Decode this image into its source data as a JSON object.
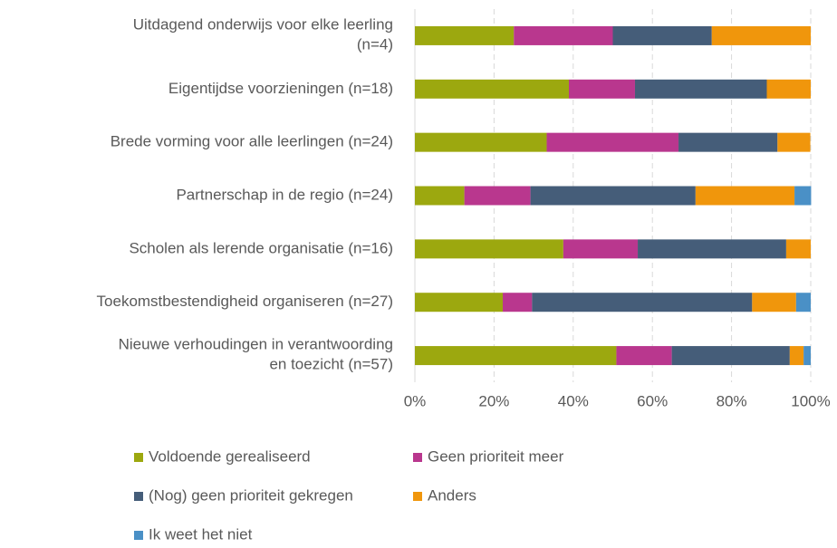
{
  "chart_data": {
    "type": "stacked-bar-horizontal",
    "categories": [
      "Uitdagend onderwijs voor elke leerling\n(n=4)",
      "Eigentijdse voorzieningen (n=18)",
      "Brede vorming voor alle leerlingen (n=24)",
      "Partnerschap in de regio (n=24)",
      "Scholen als lerende organisatie (n=16)",
      "Toekomstbestendigheid organiseren (n=27)",
      "Nieuwe verhoudingen in verantwoording\nen toezicht (n=57)"
    ],
    "series": [
      {
        "name": "Voldoende gerealiseerd",
        "color": "#9ca80f",
        "values": [
          25,
          38.9,
          33.3,
          12.5,
          37.5,
          22.2,
          50.9
        ]
      },
      {
        "name": "Geen prioriteit meer",
        "color": "#b9378e",
        "values": [
          25,
          16.7,
          33.3,
          16.7,
          18.8,
          7.4,
          14.0
        ]
      },
      {
        "name": "(Nog) geen prioriteit gekregen",
        "color": "#455d79",
        "values": [
          25,
          33.3,
          25,
          41.7,
          37.5,
          55.6,
          29.8
        ]
      },
      {
        "name": "Anders",
        "color": "#f0960c",
        "values": [
          25,
          11.1,
          8.3,
          25,
          6.2,
          11.1,
          3.5
        ]
      },
      {
        "name": "Ik weet het niet",
        "color": "#4a90c6",
        "values": [
          0,
          0,
          0,
          4.2,
          0,
          3.7,
          1.8
        ]
      }
    ],
    "xlim": [
      0,
      100
    ],
    "xticks": [
      {
        "value": 0,
        "label": "0%"
      },
      {
        "value": 20,
        "label": "20%"
      },
      {
        "value": 40,
        "label": "40%"
      },
      {
        "value": 60,
        "label": "60%"
      },
      {
        "value": 80,
        "label": "80%"
      },
      {
        "value": 100,
        "label": "100%"
      }
    ],
    "grid": true
  }
}
